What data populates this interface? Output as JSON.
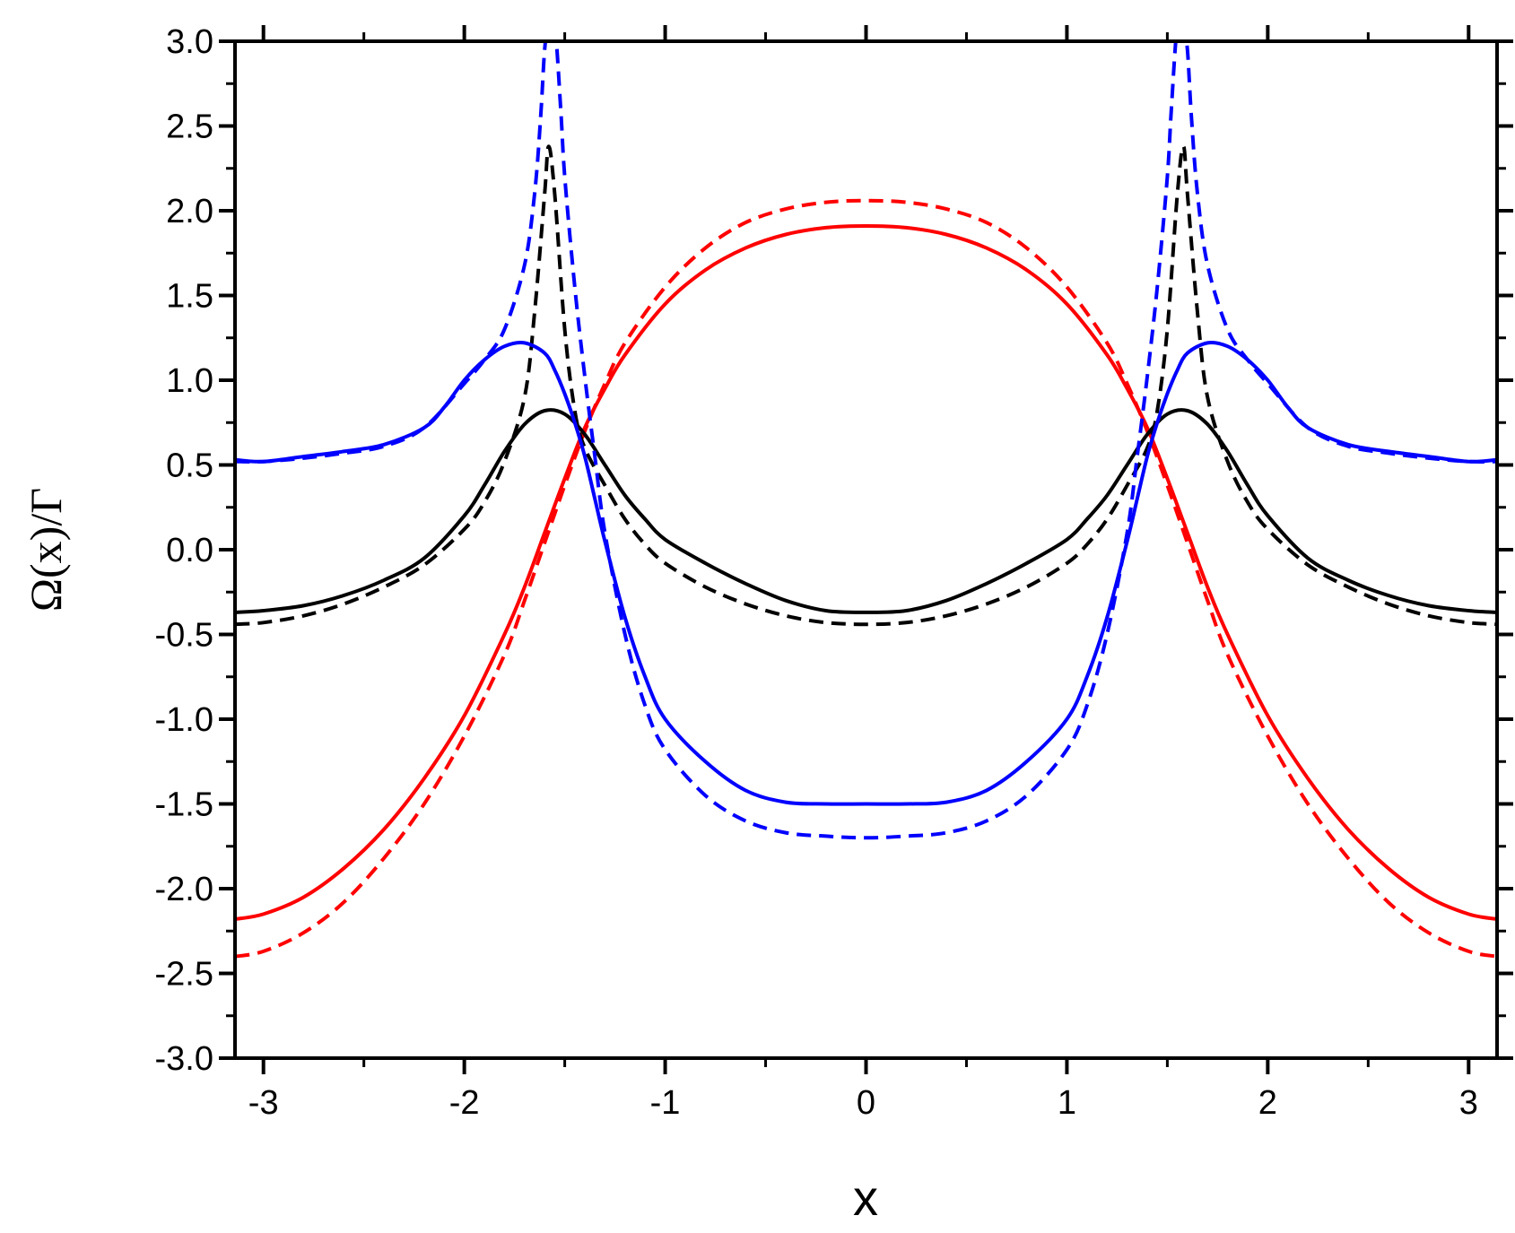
{
  "chart_data": {
    "type": "line",
    "title": "",
    "xlabel": "x",
    "ylabel": "Ω(x)/Γ",
    "xlim": [
      -3.14159,
      3.14159
    ],
    "ylim": [
      -3.0,
      3.0
    ],
    "xticks": [
      -3,
      -2,
      -1,
      0,
      1,
      2,
      3
    ],
    "xtick_labels": [
      "-3",
      "-2",
      "-1",
      "0",
      "1",
      "2",
      "3"
    ],
    "yticks": [
      -3.0,
      -2.5,
      -2.0,
      -1.5,
      -1.0,
      -0.5,
      0.0,
      0.5,
      1.0,
      1.5,
      2.0,
      2.5,
      3.0
    ],
    "ytick_labels": [
      "-3.0",
      "-2.5",
      "-2.0",
      "-1.5",
      "-1.0",
      "-0.5",
      "0.0",
      "0.5",
      "1.0",
      "1.5",
      "2.0",
      "2.5",
      "3.0"
    ],
    "grid": false,
    "legend": "none",
    "colors": {
      "red": "#ff0000",
      "black": "#000000",
      "blue": "#0000ff"
    },
    "series": [
      {
        "color": "#ff0000",
        "dash": "solid",
        "x": [
          -3.14,
          -3.0,
          -2.8,
          -2.6,
          -2.4,
          -2.2,
          -2.0,
          -1.8,
          -1.7,
          -1.6,
          -1.5,
          -1.4,
          -1.3,
          -1.2,
          -1.0,
          -0.8,
          -0.6,
          -0.4,
          -0.2,
          0.0,
          0.2,
          0.4,
          0.6,
          0.8,
          1.0,
          1.2,
          1.3,
          1.4,
          1.5,
          1.6,
          1.7,
          1.8,
          2.0,
          2.2,
          2.4,
          2.6,
          2.8,
          3.0,
          3.14
        ],
        "y": [
          -2.18,
          -2.15,
          -2.05,
          -1.88,
          -1.65,
          -1.35,
          -0.98,
          -0.5,
          -0.22,
          0.1,
          0.42,
          0.72,
          0.95,
          1.15,
          1.45,
          1.65,
          1.78,
          1.86,
          1.9,
          1.91,
          1.9,
          1.86,
          1.78,
          1.65,
          1.45,
          1.15,
          0.95,
          0.72,
          0.42,
          0.1,
          -0.22,
          -0.5,
          -0.98,
          -1.35,
          -1.65,
          -1.88,
          -2.05,
          -2.15,
          -2.18
        ]
      },
      {
        "color": "#ff0000",
        "dash": "dashed",
        "x": [
          -3.14,
          -3.0,
          -2.8,
          -2.6,
          -2.4,
          -2.2,
          -2.0,
          -1.8,
          -1.7,
          -1.6,
          -1.5,
          -1.4,
          -1.3,
          -1.2,
          -1.0,
          -0.8,
          -0.6,
          -0.4,
          -0.2,
          0.0,
          0.2,
          0.4,
          0.6,
          0.8,
          1.0,
          1.2,
          1.3,
          1.4,
          1.5,
          1.6,
          1.7,
          1.8,
          2.0,
          2.2,
          2.4,
          2.6,
          2.8,
          3.0,
          3.14
        ],
        "y": [
          -2.4,
          -2.37,
          -2.26,
          -2.08,
          -1.82,
          -1.5,
          -1.1,
          -0.62,
          -0.3,
          0.04,
          0.38,
          0.7,
          0.98,
          1.22,
          1.55,
          1.78,
          1.93,
          2.01,
          2.05,
          2.06,
          2.05,
          2.01,
          1.93,
          1.78,
          1.55,
          1.22,
          0.98,
          0.7,
          0.38,
          0.04,
          -0.3,
          -0.62,
          -1.1,
          -1.5,
          -1.82,
          -2.08,
          -2.26,
          -2.37,
          -2.4
        ]
      },
      {
        "color": "#000000",
        "dash": "solid",
        "x": [
          -3.14,
          -3.0,
          -2.8,
          -2.6,
          -2.4,
          -2.2,
          -2.0,
          -1.9,
          -1.8,
          -1.7,
          -1.6,
          -1.5,
          -1.4,
          -1.3,
          -1.2,
          -1.1,
          -1.0,
          -0.8,
          -0.6,
          -0.4,
          -0.2,
          0.0,
          0.2,
          0.4,
          0.6,
          0.8,
          1.0,
          1.1,
          1.2,
          1.3,
          1.4,
          1.5,
          1.6,
          1.7,
          1.8,
          1.9,
          2.0,
          2.2,
          2.4,
          2.6,
          2.8,
          3.0,
          3.14
        ],
        "y": [
          -0.37,
          -0.36,
          -0.33,
          -0.27,
          -0.18,
          -0.05,
          0.2,
          0.38,
          0.58,
          0.74,
          0.82,
          0.8,
          0.68,
          0.5,
          0.32,
          0.18,
          0.06,
          -0.08,
          -0.2,
          -0.3,
          -0.36,
          -0.37,
          -0.36,
          -0.3,
          -0.2,
          -0.08,
          0.06,
          0.18,
          0.32,
          0.5,
          0.68,
          0.8,
          0.82,
          0.74,
          0.58,
          0.38,
          0.2,
          -0.05,
          -0.18,
          -0.27,
          -0.33,
          -0.36,
          -0.37
        ]
      },
      {
        "color": "#000000",
        "dash": "dashed",
        "x": [
          -3.14,
          -3.0,
          -2.8,
          -2.6,
          -2.4,
          -2.2,
          -2.0,
          -1.9,
          -1.8,
          -1.7,
          -1.65,
          -1.6,
          -1.58,
          -1.55,
          -1.5,
          -1.45,
          -1.4,
          -1.3,
          -1.2,
          -1.1,
          -1.0,
          -0.8,
          -0.6,
          -0.4,
          -0.2,
          0.0,
          0.2,
          0.4,
          0.6,
          0.8,
          1.0,
          1.1,
          1.2,
          1.3,
          1.4,
          1.45,
          1.5,
          1.55,
          1.58,
          1.6,
          1.65,
          1.7,
          1.8,
          1.9,
          2.0,
          2.2,
          2.4,
          2.6,
          2.8,
          3.0,
          3.14
        ],
        "y": [
          -0.44,
          -0.43,
          -0.39,
          -0.32,
          -0.22,
          -0.09,
          0.12,
          0.28,
          0.52,
          0.9,
          1.4,
          2.1,
          2.38,
          2.1,
          1.3,
          0.82,
          0.6,
          0.38,
          0.18,
          0.03,
          -0.08,
          -0.22,
          -0.32,
          -0.39,
          -0.43,
          -0.44,
          -0.43,
          -0.39,
          -0.32,
          -0.22,
          -0.08,
          0.03,
          0.18,
          0.38,
          0.6,
          0.82,
          1.3,
          2.1,
          2.38,
          2.1,
          1.4,
          0.9,
          0.52,
          0.28,
          0.12,
          -0.09,
          -0.22,
          -0.32,
          -0.39,
          -0.43,
          -0.44
        ]
      },
      {
        "color": "#0000ff",
        "dash": "solid",
        "x": [
          -3.14,
          -3.0,
          -2.8,
          -2.6,
          -2.4,
          -2.2,
          -2.1,
          -2.0,
          -1.9,
          -1.8,
          -1.7,
          -1.6,
          -1.55,
          -1.5,
          -1.45,
          -1.4,
          -1.35,
          -1.3,
          -1.2,
          -1.1,
          -1.0,
          -0.8,
          -0.6,
          -0.4,
          -0.2,
          0.0,
          0.2,
          0.4,
          0.6,
          0.8,
          1.0,
          1.1,
          1.2,
          1.3,
          1.35,
          1.4,
          1.45,
          1.5,
          1.55,
          1.6,
          1.7,
          1.8,
          1.9,
          2.0,
          2.1,
          2.2,
          2.4,
          2.6,
          2.8,
          3.0,
          3.14
        ],
        "y": [
          0.53,
          0.52,
          0.55,
          0.58,
          0.62,
          0.72,
          0.84,
          1.0,
          1.12,
          1.2,
          1.22,
          1.16,
          1.06,
          0.92,
          0.75,
          0.55,
          0.3,
          0.05,
          -0.4,
          -0.75,
          -1.0,
          -1.25,
          -1.42,
          -1.49,
          -1.5,
          -1.5,
          -1.5,
          -1.49,
          -1.42,
          -1.25,
          -1.0,
          -0.75,
          -0.4,
          0.05,
          0.3,
          0.55,
          0.75,
          0.92,
          1.06,
          1.16,
          1.22,
          1.2,
          1.12,
          1.0,
          0.84,
          0.72,
          0.62,
          0.58,
          0.55,
          0.52,
          0.53
        ]
      },
      {
        "color": "#0000ff",
        "dash": "dashed",
        "x": [
          -3.14,
          -3.0,
          -2.8,
          -2.6,
          -2.4,
          -2.2,
          -2.0,
          -1.9,
          -1.8,
          -1.7,
          -1.65,
          -1.62,
          -1.6,
          -1.58,
          -1.55,
          -1.52,
          -1.5,
          -1.45,
          -1.4,
          -1.35,
          -1.3,
          -1.2,
          -1.1,
          -1.0,
          -0.8,
          -0.6,
          -0.4,
          -0.2,
          0.0,
          0.2,
          0.4,
          0.6,
          0.8,
          1.0,
          1.1,
          1.2,
          1.3,
          1.35,
          1.4,
          1.45,
          1.5,
          1.52,
          1.55,
          1.58,
          1.6,
          1.62,
          1.65,
          1.7,
          1.8,
          1.9,
          2.0,
          2.2,
          2.4,
          2.6,
          2.8,
          3.0,
          3.14
        ],
        "y": [
          0.52,
          0.52,
          0.54,
          0.57,
          0.61,
          0.72,
          0.98,
          1.12,
          1.3,
          1.68,
          2.1,
          2.55,
          2.95,
          3.1,
          3.1,
          2.6,
          2.2,
          1.55,
          1.02,
          0.55,
          0.1,
          -0.5,
          -0.92,
          -1.18,
          -1.45,
          -1.6,
          -1.67,
          -1.69,
          -1.7,
          -1.69,
          -1.67,
          -1.6,
          -1.45,
          -1.18,
          -0.92,
          -0.5,
          0.1,
          0.55,
          1.02,
          1.55,
          2.2,
          2.6,
          3.1,
          3.1,
          2.95,
          2.55,
          2.1,
          1.68,
          1.3,
          1.12,
          0.98,
          0.72,
          0.61,
          0.57,
          0.54,
          0.52,
          0.52
        ]
      }
    ]
  }
}
